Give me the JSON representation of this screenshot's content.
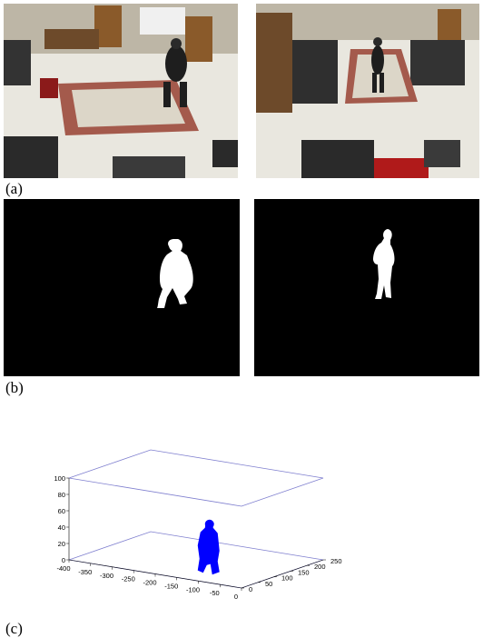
{
  "figure": {
    "captions": {
      "a": "(a)",
      "b": "(b)",
      "c": "(c)"
    },
    "panels": {
      "photos": [
        "left-camera-view",
        "right-camera-view"
      ],
      "masks": [
        "left-silhouette",
        "right-silhouette"
      ],
      "reconstruction": "3d-voxel-person"
    }
  },
  "chart_data": {
    "type": "scatter",
    "z_ticks": [
      "0",
      "20",
      "40",
      "60",
      "80",
      "100"
    ],
    "x_ticks": [
      "-400",
      "-350",
      "-300",
      "-250",
      "-200",
      "-150",
      "-100",
      "-50",
      "0"
    ],
    "y_ticks": [
      "0",
      "50",
      "100",
      "150",
      "200",
      "250"
    ],
    "xlim": [
      -400,
      0
    ],
    "ylim": [
      0,
      250
    ],
    "zlim": [
      0,
      100
    ],
    "grid": false,
    "series_color": "#0000ff",
    "plane_color": "#7f7fcf"
  }
}
